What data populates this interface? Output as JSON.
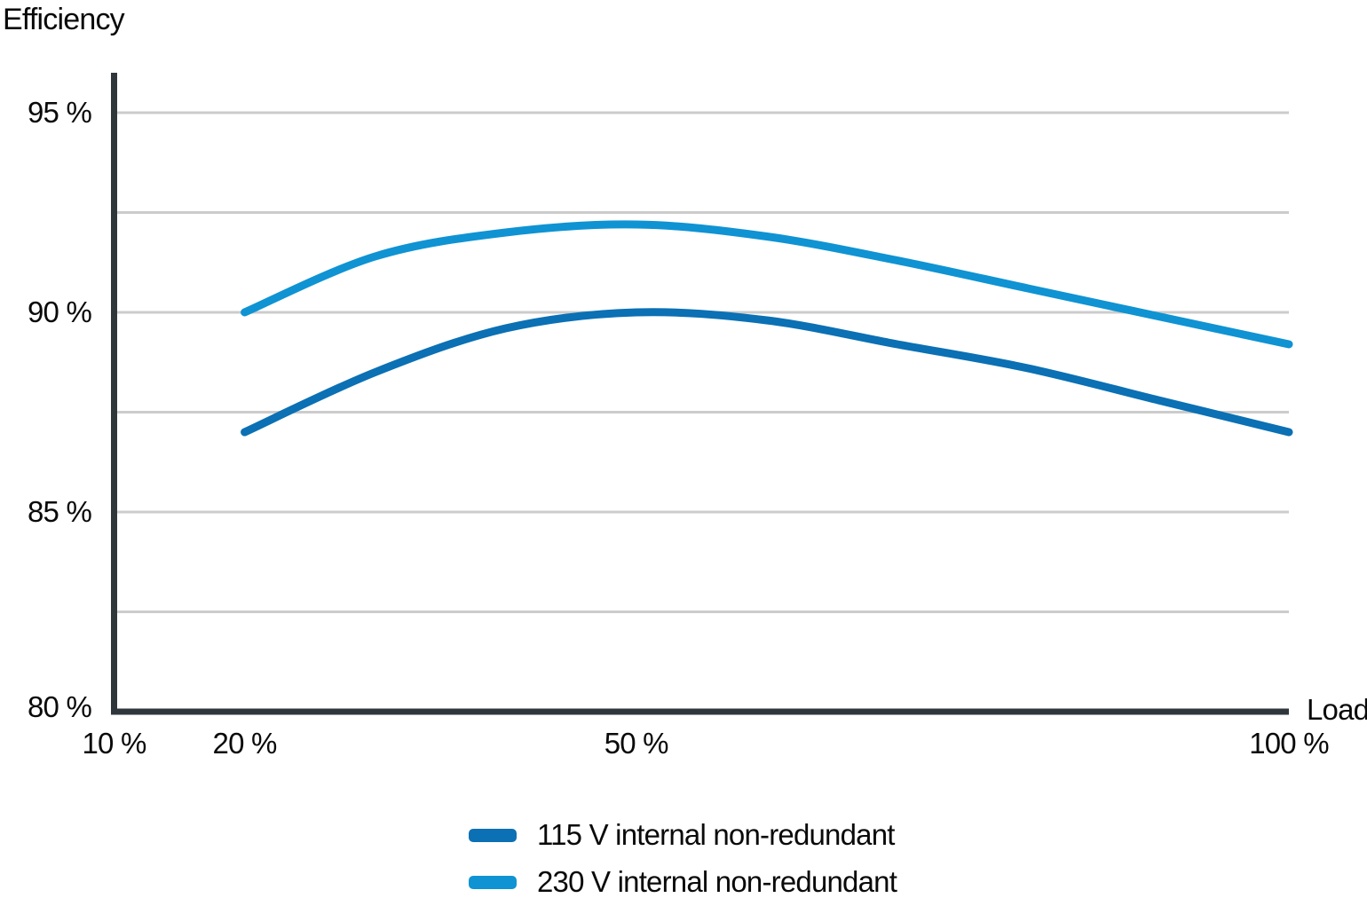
{
  "chart_data": {
    "type": "line",
    "title": "",
    "ylabel": "Efficiency",
    "xlabel": "Load",
    "x_unit": "%",
    "y_unit": "%",
    "x": [
      20,
      30,
      40,
      50,
      60,
      70,
      80,
      90,
      100
    ],
    "series": [
      {
        "id": "115v",
        "name": "115 V internal non-redundant",
        "color": "#0b70b4",
        "values": [
          87.0,
          88.5,
          89.6,
          90.0,
          89.8,
          89.2,
          88.6,
          87.8,
          87.0
        ]
      },
      {
        "id": "230v",
        "name": "230 V internal non-redundant",
        "color": "#0f93d3",
        "values": [
          90.0,
          91.4,
          92.0,
          92.2,
          91.9,
          91.3,
          90.6,
          89.9,
          89.2
        ]
      }
    ],
    "x_ticks": [
      {
        "value": 10,
        "label": "10 %"
      },
      {
        "value": 20,
        "label": "20 %"
      },
      {
        "value": 50,
        "label": "50 %"
      },
      {
        "value": 100,
        "label": "100 %"
      }
    ],
    "y_ticks": [
      {
        "value": 95,
        "label": "95 %"
      },
      {
        "value": 90,
        "label": "90 %"
      },
      {
        "value": 85,
        "label": "85 %"
      },
      {
        "value": 80,
        "label": "80 %"
      }
    ],
    "y_gridlines": [
      82.5,
      85,
      87.5,
      90,
      92.5,
      95
    ],
    "xlim": [
      10,
      100
    ],
    "ylim": [
      80,
      96
    ],
    "grid": "horizontal-only",
    "legend_position": "bottom-center",
    "colors": {
      "axis": "#2f373d",
      "grid": "#cccccc",
      "text": "#0a0a0a",
      "background": "#ffffff"
    }
  }
}
